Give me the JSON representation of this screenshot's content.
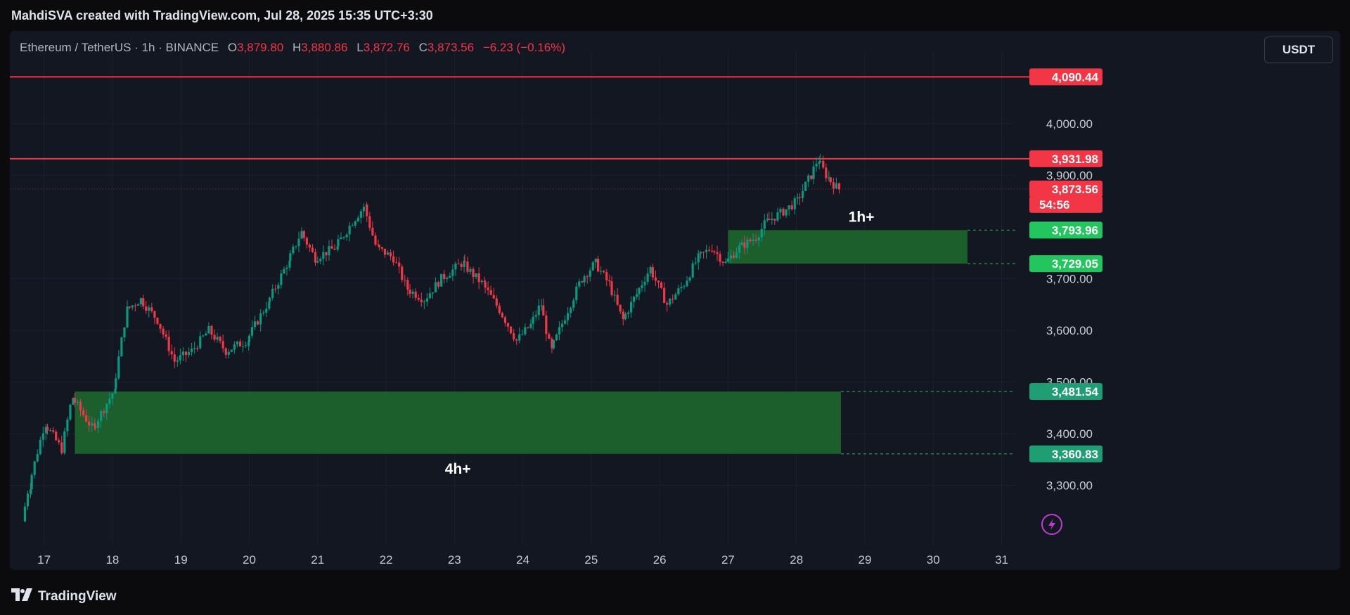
{
  "header": {
    "text": "MahdiSVA created with TradingView.com, Jul 28, 2025 15:35 UTC+3:30"
  },
  "legend": {
    "symbol": "Ethereum / TetherUS · 1h · BINANCE",
    "open_label": "O",
    "open": "3,879.80",
    "high_label": "H",
    "high": "3,880.86",
    "low_label": "L",
    "low": "3,872.76",
    "close_label": "C",
    "close": "3,873.56",
    "change": "−6.23 (−0.16%)"
  },
  "currency_button": "USDT",
  "footer": {
    "brand": "TradingView"
  },
  "chart_data": {
    "type": "candlestick",
    "symbol": "ETHUSDT",
    "interval": "1h",
    "x_ticks": [
      "17",
      "18",
      "19",
      "20",
      "21",
      "22",
      "23",
      "24",
      "25",
      "26",
      "27",
      "28",
      "29",
      "30",
      "31"
    ],
    "y_ticks": [
      "3,300.00",
      "3,400.00",
      "3,500.00",
      "3,600.00",
      "3,700.00",
      "3,900.00",
      "4,000.00"
    ],
    "y_tick_values": [
      3300,
      3400,
      3500,
      3600,
      3700,
      3900,
      4000
    ],
    "ylim": [
      3200,
      4125
    ],
    "xlim_days": [
      16.5,
      31.2
    ],
    "price_path": [
      [
        16.72,
        3230
      ],
      [
        16.82,
        3300
      ],
      [
        17.05,
        3420
      ],
      [
        17.3,
        3370
      ],
      [
        17.45,
        3470
      ],
      [
        17.75,
        3410
      ],
      [
        18.05,
        3480
      ],
      [
        18.25,
        3640
      ],
      [
        18.45,
        3660
      ],
      [
        18.7,
        3620
      ],
      [
        18.95,
        3540
      ],
      [
        19.2,
        3560
      ],
      [
        19.45,
        3600
      ],
      [
        19.7,
        3560
      ],
      [
        20.0,
        3580
      ],
      [
        20.3,
        3650
      ],
      [
        20.6,
        3730
      ],
      [
        20.8,
        3790
      ],
      [
        21.0,
        3740
      ],
      [
        21.3,
        3760
      ],
      [
        21.55,
        3810
      ],
      [
        21.72,
        3840
      ],
      [
        21.9,
        3760
      ],
      [
        22.15,
        3740
      ],
      [
        22.35,
        3680
      ],
      [
        22.6,
        3660
      ],
      [
        22.85,
        3700
      ],
      [
        23.15,
        3730
      ],
      [
        23.45,
        3690
      ],
      [
        23.7,
        3640
      ],
      [
        23.95,
        3580
      ],
      [
        24.15,
        3610
      ],
      [
        24.3,
        3650
      ],
      [
        24.45,
        3560
      ],
      [
        24.7,
        3640
      ],
      [
        24.9,
        3700
      ],
      [
        25.1,
        3730
      ],
      [
        25.3,
        3690
      ],
      [
        25.5,
        3620
      ],
      [
        25.7,
        3670
      ],
      [
        25.9,
        3720
      ],
      [
        26.15,
        3650
      ],
      [
        26.4,
        3690
      ],
      [
        26.6,
        3740
      ],
      [
        26.8,
        3760
      ],
      [
        27.0,
        3730
      ],
      [
        27.2,
        3760
      ],
      [
        27.45,
        3780
      ],
      [
        27.6,
        3810
      ],
      [
        27.85,
        3830
      ],
      [
        28.05,
        3850
      ],
      [
        28.25,
        3900
      ],
      [
        28.35,
        3930
      ],
      [
        28.5,
        3895
      ],
      [
        28.65,
        3873.56
      ]
    ],
    "horizontal_lines": [
      {
        "price": 4090.44,
        "label": "4,090.44",
        "color": "#f23645"
      },
      {
        "price": 3931.98,
        "label": "3,931.98",
        "color": "#f23645"
      }
    ],
    "zones": [
      {
        "name": "1h+",
        "top": 3793.96,
        "bottom": 3729.05,
        "top_label": "3,793.96",
        "bottom_label": "3,729.05",
        "x_start": 27.0,
        "x_end": 30.5,
        "tag_color": "#22c55e"
      },
      {
        "name": "4h+",
        "top": 3481.54,
        "bottom": 3360.83,
        "top_label": "3,481.54",
        "bottom_label": "3,360.83",
        "x_start": 17.45,
        "x_end": 28.65,
        "tag_color": "#1f9e74"
      }
    ],
    "current_price": {
      "price": 3873.56,
      "label": "3,873.56",
      "countdown": "54:56",
      "color": "#f23645"
    },
    "up_color": "#089981",
    "down_color": "#f23645",
    "zone_fill": "#1f6b2e"
  }
}
